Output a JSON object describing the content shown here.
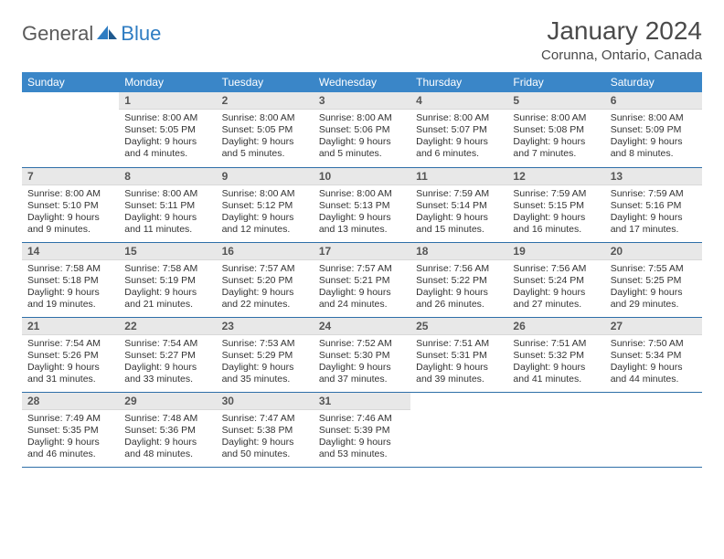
{
  "brand": {
    "word1": "General",
    "word2": "Blue"
  },
  "header": {
    "title": "January 2024",
    "location": "Corunna, Ontario, Canada"
  },
  "colors": {
    "header_bg": "#3a86c8",
    "header_text": "#ffffff",
    "daynum_bg": "#e8e8e8",
    "rule": "#2e6fa8",
    "brand_gray": "#5a5a5a",
    "brand_blue": "#2e7cc2"
  },
  "day_labels": [
    "Sunday",
    "Monday",
    "Tuesday",
    "Wednesday",
    "Thursday",
    "Friday",
    "Saturday"
  ],
  "weeks": [
    [
      {
        "n": "",
        "sr": "",
        "ss": "",
        "dl": ""
      },
      {
        "n": "1",
        "sr": "Sunrise: 8:00 AM",
        "ss": "Sunset: 5:05 PM",
        "dl": "Daylight: 9 hours and 4 minutes."
      },
      {
        "n": "2",
        "sr": "Sunrise: 8:00 AM",
        "ss": "Sunset: 5:05 PM",
        "dl": "Daylight: 9 hours and 5 minutes."
      },
      {
        "n": "3",
        "sr": "Sunrise: 8:00 AM",
        "ss": "Sunset: 5:06 PM",
        "dl": "Daylight: 9 hours and 5 minutes."
      },
      {
        "n": "4",
        "sr": "Sunrise: 8:00 AM",
        "ss": "Sunset: 5:07 PM",
        "dl": "Daylight: 9 hours and 6 minutes."
      },
      {
        "n": "5",
        "sr": "Sunrise: 8:00 AM",
        "ss": "Sunset: 5:08 PM",
        "dl": "Daylight: 9 hours and 7 minutes."
      },
      {
        "n": "6",
        "sr": "Sunrise: 8:00 AM",
        "ss": "Sunset: 5:09 PM",
        "dl": "Daylight: 9 hours and 8 minutes."
      }
    ],
    [
      {
        "n": "7",
        "sr": "Sunrise: 8:00 AM",
        "ss": "Sunset: 5:10 PM",
        "dl": "Daylight: 9 hours and 9 minutes."
      },
      {
        "n": "8",
        "sr": "Sunrise: 8:00 AM",
        "ss": "Sunset: 5:11 PM",
        "dl": "Daylight: 9 hours and 11 minutes."
      },
      {
        "n": "9",
        "sr": "Sunrise: 8:00 AM",
        "ss": "Sunset: 5:12 PM",
        "dl": "Daylight: 9 hours and 12 minutes."
      },
      {
        "n": "10",
        "sr": "Sunrise: 8:00 AM",
        "ss": "Sunset: 5:13 PM",
        "dl": "Daylight: 9 hours and 13 minutes."
      },
      {
        "n": "11",
        "sr": "Sunrise: 7:59 AM",
        "ss": "Sunset: 5:14 PM",
        "dl": "Daylight: 9 hours and 15 minutes."
      },
      {
        "n": "12",
        "sr": "Sunrise: 7:59 AM",
        "ss": "Sunset: 5:15 PM",
        "dl": "Daylight: 9 hours and 16 minutes."
      },
      {
        "n": "13",
        "sr": "Sunrise: 7:59 AM",
        "ss": "Sunset: 5:16 PM",
        "dl": "Daylight: 9 hours and 17 minutes."
      }
    ],
    [
      {
        "n": "14",
        "sr": "Sunrise: 7:58 AM",
        "ss": "Sunset: 5:18 PM",
        "dl": "Daylight: 9 hours and 19 minutes."
      },
      {
        "n": "15",
        "sr": "Sunrise: 7:58 AM",
        "ss": "Sunset: 5:19 PM",
        "dl": "Daylight: 9 hours and 21 minutes."
      },
      {
        "n": "16",
        "sr": "Sunrise: 7:57 AM",
        "ss": "Sunset: 5:20 PM",
        "dl": "Daylight: 9 hours and 22 minutes."
      },
      {
        "n": "17",
        "sr": "Sunrise: 7:57 AM",
        "ss": "Sunset: 5:21 PM",
        "dl": "Daylight: 9 hours and 24 minutes."
      },
      {
        "n": "18",
        "sr": "Sunrise: 7:56 AM",
        "ss": "Sunset: 5:22 PM",
        "dl": "Daylight: 9 hours and 26 minutes."
      },
      {
        "n": "19",
        "sr": "Sunrise: 7:56 AM",
        "ss": "Sunset: 5:24 PM",
        "dl": "Daylight: 9 hours and 27 minutes."
      },
      {
        "n": "20",
        "sr": "Sunrise: 7:55 AM",
        "ss": "Sunset: 5:25 PM",
        "dl": "Daylight: 9 hours and 29 minutes."
      }
    ],
    [
      {
        "n": "21",
        "sr": "Sunrise: 7:54 AM",
        "ss": "Sunset: 5:26 PM",
        "dl": "Daylight: 9 hours and 31 minutes."
      },
      {
        "n": "22",
        "sr": "Sunrise: 7:54 AM",
        "ss": "Sunset: 5:27 PM",
        "dl": "Daylight: 9 hours and 33 minutes."
      },
      {
        "n": "23",
        "sr": "Sunrise: 7:53 AM",
        "ss": "Sunset: 5:29 PM",
        "dl": "Daylight: 9 hours and 35 minutes."
      },
      {
        "n": "24",
        "sr": "Sunrise: 7:52 AM",
        "ss": "Sunset: 5:30 PM",
        "dl": "Daylight: 9 hours and 37 minutes."
      },
      {
        "n": "25",
        "sr": "Sunrise: 7:51 AM",
        "ss": "Sunset: 5:31 PM",
        "dl": "Daylight: 9 hours and 39 minutes."
      },
      {
        "n": "26",
        "sr": "Sunrise: 7:51 AM",
        "ss": "Sunset: 5:32 PM",
        "dl": "Daylight: 9 hours and 41 minutes."
      },
      {
        "n": "27",
        "sr": "Sunrise: 7:50 AM",
        "ss": "Sunset: 5:34 PM",
        "dl": "Daylight: 9 hours and 44 minutes."
      }
    ],
    [
      {
        "n": "28",
        "sr": "Sunrise: 7:49 AM",
        "ss": "Sunset: 5:35 PM",
        "dl": "Daylight: 9 hours and 46 minutes."
      },
      {
        "n": "29",
        "sr": "Sunrise: 7:48 AM",
        "ss": "Sunset: 5:36 PM",
        "dl": "Daylight: 9 hours and 48 minutes."
      },
      {
        "n": "30",
        "sr": "Sunrise: 7:47 AM",
        "ss": "Sunset: 5:38 PM",
        "dl": "Daylight: 9 hours and 50 minutes."
      },
      {
        "n": "31",
        "sr": "Sunrise: 7:46 AM",
        "ss": "Sunset: 5:39 PM",
        "dl": "Daylight: 9 hours and 53 minutes."
      },
      {
        "n": "",
        "sr": "",
        "ss": "",
        "dl": ""
      },
      {
        "n": "",
        "sr": "",
        "ss": "",
        "dl": ""
      },
      {
        "n": "",
        "sr": "",
        "ss": "",
        "dl": ""
      }
    ]
  ]
}
